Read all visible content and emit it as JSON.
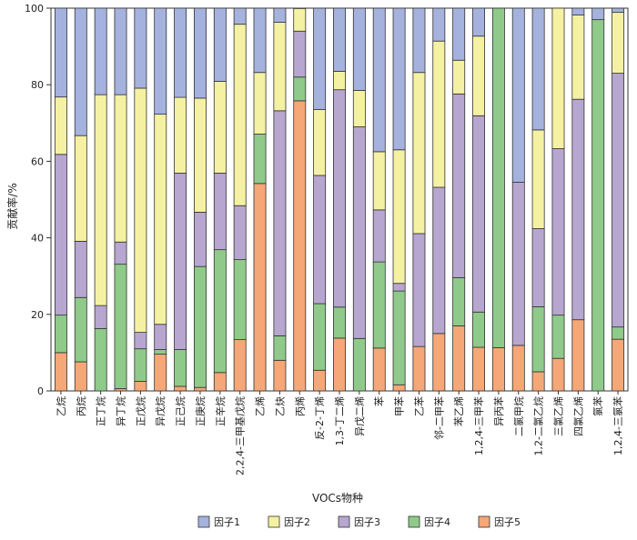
{
  "chart_data": {
    "type": "bar",
    "stacked": true,
    "xlabel": "VOCs物种",
    "ylabel": "贡献率/%",
    "ylim": [
      0,
      100
    ],
    "yticks": [
      0,
      20,
      40,
      60,
      80,
      100
    ],
    "grid": false,
    "legend_position": "bottom",
    "categories": [
      "乙烷",
      "丙烷",
      "正丁烷",
      "异丁烷",
      "正戊烷",
      "异戊烷",
      "正己烷",
      "正庚烷",
      "正辛烷",
      "2,2,4-三甲基戊烷",
      "乙烯",
      "乙炔",
      "丙烯",
      "反-2-丁烯",
      "1,3-丁二烯",
      "异戊二烯",
      "苯",
      "甲苯",
      "乙苯",
      "邻-二甲苯",
      "苯乙烯",
      "1,2,4-三甲苯",
      "异丙苯",
      "二氯甲烷",
      "1,2-二氯乙烷",
      "三氯乙烯",
      "四氯乙烯",
      "氯苯",
      "1,2,4-三氯苯"
    ],
    "series": [
      {
        "name": "因子5",
        "color": "#F5A777",
        "values": [
          10,
          7.6,
          0,
          0.6,
          2.5,
          9.6,
          1.2,
          0.9,
          4.8,
          13.4,
          54.2,
          8,
          75.8,
          5.4,
          13.8,
          0,
          11.2,
          1.6,
          11.6,
          15,
          17,
          11.4,
          11.3,
          11.9,
          5,
          8.5,
          18.6,
          0,
          13.5
        ]
      },
      {
        "name": "因子4",
        "color": "#8FCA8A",
        "values": [
          9.8,
          16.8,
          16.3,
          32.5,
          8.5,
          1.2,
          9.6,
          31.6,
          32.1,
          20.9,
          12.9,
          6.4,
          6.2,
          17.4,
          8.1,
          13.7,
          22.5,
          24.5,
          0,
          0,
          12.6,
          9.2,
          88.7,
          0,
          17,
          11.3,
          0,
          97,
          3.2
        ]
      },
      {
        "name": "因子3",
        "color": "#B7A6CF",
        "values": [
          42,
          14.7,
          6,
          5.8,
          4.3,
          6.6,
          46.1,
          14.2,
          20,
          14.1,
          0,
          58.8,
          12,
          33.5,
          56.8,
          55.3,
          13.6,
          2,
          29.5,
          38.2,
          48,
          51.3,
          0,
          42.6,
          20.4,
          43.5,
          57.6,
          0,
          66.3
        ]
      },
      {
        "name": "因子2",
        "color": "#F5F1A2",
        "values": [
          15,
          27.6,
          55.1,
          38.5,
          63.8,
          54.9,
          19.8,
          29.8,
          24,
          47.4,
          16.1,
          23.1,
          5.9,
          17.2,
          4.8,
          9.5,
          15.2,
          34.9,
          42.1,
          38.2,
          8.8,
          20.8,
          0,
          0,
          25.8,
          36.7,
          22,
          0,
          15.9
        ]
      },
      {
        "name": "因子1",
        "color": "#A5B2DD",
        "values": [
          23.2,
          33.3,
          22.6,
          22.6,
          20.9,
          27.7,
          23.3,
          23.5,
          19.1,
          4.2,
          16.8,
          3.7,
          0,
          26.5,
          16.5,
          21.5,
          37.5,
          37,
          16.8,
          8.6,
          13.6,
          7.3,
          0,
          45.5,
          31.8,
          0,
          1.8,
          3,
          1.1
        ]
      }
    ],
    "legend": [
      "因子1",
      "因子2",
      "因子3",
      "因子4",
      "因子5"
    ]
  }
}
